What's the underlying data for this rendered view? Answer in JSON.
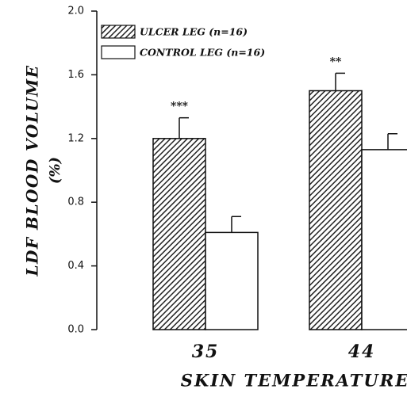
{
  "chart_data": {
    "type": "bar",
    "xlabel": "SKIN TEMPERATURE",
    "ylabel": "LDF BLOOD VOLUME",
    "ylabel2": "(%)",
    "categories": [
      "35",
      "44"
    ],
    "series": [
      {
        "name": "ULCER LEG (n=16)",
        "color": "#222222",
        "pattern": "hatch",
        "values": [
          1.2,
          1.5
        ],
        "errors": [
          0.13,
          0.11
        ],
        "significance": [
          "***",
          "**"
        ]
      },
      {
        "name": "CONTROL LEG (n=16)",
        "color": "#ffffff",
        "values": [
          0.61,
          1.13
        ],
        "errors": [
          0.1,
          0.1
        ]
      }
    ],
    "ylim": [
      0,
      2
    ],
    "yticks": [
      {
        "value": 0,
        "label": "0.0"
      },
      0.4,
      0.8,
      1.2,
      1.6,
      {
        "value": 2,
        "label": "2.0"
      }
    ],
    "legend": "upper left"
  }
}
